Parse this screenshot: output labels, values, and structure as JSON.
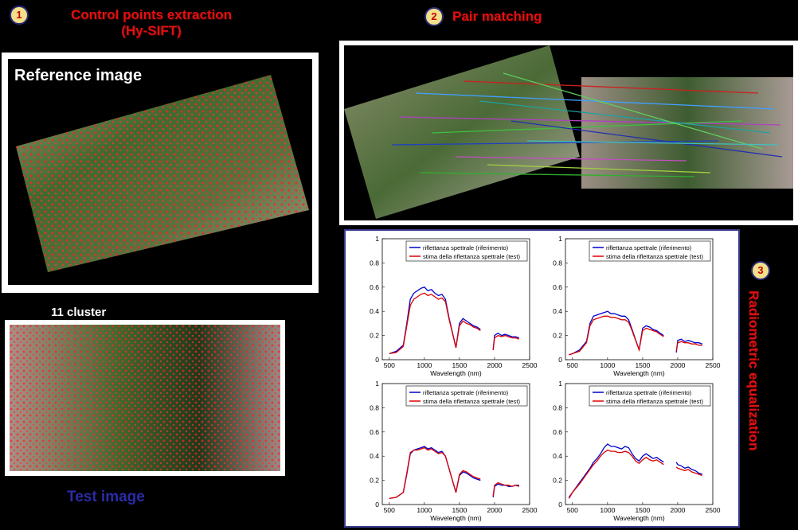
{
  "steps": {
    "s1": {
      "number": "1",
      "title_line1": "Control points extraction",
      "title_line2": "(Hy-SIFT)"
    },
    "s2": {
      "number": "2",
      "title": "Pair matching"
    },
    "s3": {
      "number": "3",
      "title": "Radiometric equalization"
    }
  },
  "labels": {
    "reference": "Reference image",
    "cluster": "11 cluster",
    "test": "Test image"
  },
  "colors": {
    "title_red": "#e01010",
    "test_blue": "#2b2ba8",
    "ref_line": "#0000cc",
    "test_line": "#dd0000"
  },
  "legend": {
    "ref": "riflettanza spettrale (riferimento)",
    "test": "stima della riflettanza spettrale (test)"
  },
  "xlabel": "Wavelength (nm)",
  "chart_data": [
    {
      "type": "line",
      "x": [
        500,
        600,
        700,
        750,
        800,
        850,
        900,
        950,
        1000,
        1050,
        1100,
        1150,
        1200,
        1250,
        1300,
        1350,
        1450,
        1500,
        1550,
        1600,
        1650,
        1700,
        1750,
        1800,
        1980,
        2000,
        2050,
        2100,
        2150,
        2200,
        2250,
        2300,
        2350
      ],
      "xlim": [
        400,
        2500
      ],
      "ylim": [
        0,
        1
      ],
      "xticks": [
        500,
        1000,
        1500,
        2000,
        2500
      ],
      "yticks": [
        0,
        0.2,
        0.4,
        0.6,
        0.8,
        1
      ],
      "xlabel": "Wavelength (nm)",
      "series": [
        {
          "name": "riflettanza spettrale (riferimento)",
          "values": [
            0.05,
            0.07,
            0.12,
            0.3,
            0.5,
            0.55,
            0.57,
            0.59,
            0.6,
            0.57,
            0.58,
            0.55,
            0.53,
            0.54,
            0.5,
            0.35,
            0.1,
            0.3,
            0.34,
            0.32,
            0.3,
            0.28,
            0.27,
            0.25,
            0.08,
            0.2,
            0.22,
            0.2,
            0.21,
            0.2,
            0.19,
            0.19,
            0.18
          ]
        },
        {
          "name": "stima della riflettanza spettrale (test)",
          "values": [
            0.05,
            0.06,
            0.11,
            0.28,
            0.45,
            0.5,
            0.52,
            0.54,
            0.55,
            0.53,
            0.54,
            0.52,
            0.5,
            0.51,
            0.48,
            0.34,
            0.1,
            0.28,
            0.32,
            0.3,
            0.29,
            0.27,
            0.26,
            0.24,
            0.08,
            0.18,
            0.2,
            0.19,
            0.2,
            0.19,
            0.18,
            0.18,
            0.17
          ]
        }
      ]
    },
    {
      "type": "line",
      "x": [
        450,
        500,
        600,
        700,
        750,
        800,
        850,
        900,
        950,
        1000,
        1050,
        1100,
        1150,
        1200,
        1250,
        1300,
        1350,
        1450,
        1500,
        1550,
        1600,
        1650,
        1700,
        1750,
        1800,
        1980,
        2000,
        2050,
        2100,
        2150,
        2200,
        2250,
        2300,
        2350
      ],
      "xlim": [
        400,
        2500
      ],
      "ylim": [
        0,
        1
      ],
      "xticks": [
        500,
        1000,
        1500,
        2000,
        2500
      ],
      "yticks": [
        0,
        0.2,
        0.4,
        0.6,
        0.8,
        1
      ],
      "xlabel": "Wavelength (nm)",
      "series": [
        {
          "name": "riflettanza spettrale (riferimento)",
          "values": [
            0.04,
            0.05,
            0.08,
            0.15,
            0.3,
            0.36,
            0.37,
            0.38,
            0.39,
            0.4,
            0.38,
            0.38,
            0.37,
            0.36,
            0.36,
            0.33,
            0.25,
            0.08,
            0.26,
            0.28,
            0.27,
            0.25,
            0.24,
            0.22,
            0.2,
            0.06,
            0.16,
            0.17,
            0.15,
            0.16,
            0.15,
            0.14,
            0.14,
            0.13
          ]
        },
        {
          "name": "stima della riflettanza spettrale (test)",
          "values": [
            0.04,
            0.05,
            0.07,
            0.14,
            0.28,
            0.33,
            0.34,
            0.35,
            0.36,
            0.36,
            0.35,
            0.35,
            0.34,
            0.33,
            0.33,
            0.31,
            0.24,
            0.08,
            0.24,
            0.26,
            0.25,
            0.24,
            0.23,
            0.21,
            0.19,
            0.07,
            0.14,
            0.15,
            0.14,
            0.14,
            0.13,
            0.13,
            0.12,
            0.12
          ]
        }
      ]
    },
    {
      "type": "line",
      "x": [
        500,
        600,
        700,
        750,
        800,
        850,
        900,
        950,
        1000,
        1050,
        1100,
        1150,
        1200,
        1250,
        1300,
        1350,
        1450,
        1500,
        1550,
        1600,
        1650,
        1700,
        1750,
        1800,
        1980,
        2000,
        2050,
        2100,
        2150,
        2200,
        2250,
        2300,
        2350
      ],
      "xlim": [
        400,
        2500
      ],
      "ylim": [
        0,
        1
      ],
      "xticks": [
        500,
        1000,
        1500,
        2000,
        2500
      ],
      "yticks": [
        0,
        0.2,
        0.4,
        0.6,
        0.8,
        1
      ],
      "xlabel": "Wavelength (nm)",
      "series": [
        {
          "name": "riflettanza spettrale (riferimento)",
          "values": [
            0.05,
            0.06,
            0.1,
            0.25,
            0.42,
            0.45,
            0.46,
            0.47,
            0.48,
            0.46,
            0.47,
            0.45,
            0.43,
            0.44,
            0.4,
            0.3,
            0.1,
            0.24,
            0.27,
            0.26,
            0.24,
            0.22,
            0.21,
            0.2,
            0.06,
            0.15,
            0.17,
            0.16,
            0.16,
            0.15,
            0.15,
            0.16,
            0.16
          ]
        },
        {
          "name": "stima della riflettanza spettrale (test)",
          "values": [
            0.05,
            0.06,
            0.1,
            0.26,
            0.43,
            0.45,
            0.45,
            0.46,
            0.47,
            0.45,
            0.46,
            0.44,
            0.42,
            0.43,
            0.4,
            0.3,
            0.1,
            0.25,
            0.28,
            0.27,
            0.25,
            0.23,
            0.22,
            0.21,
            0.07,
            0.16,
            0.18,
            0.17,
            0.16,
            0.16,
            0.15,
            0.16,
            0.15
          ]
        }
      ]
    },
    {
      "type": "line",
      "x": [
        450,
        500,
        600,
        700,
        750,
        800,
        850,
        900,
        950,
        1000,
        1050,
        1100,
        1150,
        1200,
        1250,
        1300,
        1350,
        1400,
        1450,
        1500,
        1550,
        1600,
        1650,
        1700,
        1750,
        1800,
        1980,
        2000,
        2050,
        2100,
        2150,
        2200,
        2250,
        2300,
        2350
      ],
      "xlim": [
        400,
        2500
      ],
      "ylim": [
        0,
        1
      ],
      "xticks": [
        500,
        1000,
        1500,
        2000,
        2500
      ],
      "yticks": [
        0,
        0.2,
        0.4,
        0.6,
        0.8,
        1
      ],
      "xlabel": "Wavelength (nm)",
      "series": [
        {
          "name": "riflettanza spettrale (riferimento)",
          "values": [
            0.06,
            0.1,
            0.18,
            0.26,
            0.3,
            0.35,
            0.38,
            0.42,
            0.47,
            0.5,
            0.48,
            0.48,
            0.47,
            0.46,
            0.48,
            0.47,
            0.42,
            0.38,
            0.36,
            0.4,
            0.42,
            0.4,
            0.38,
            0.39,
            0.37,
            0.35,
            0.35,
            0.33,
            0.32,
            0.3,
            0.31,
            0.29,
            0.28,
            0.26,
            0.25
          ]
        },
        {
          "name": "stima della riflettanza spettrale (test)",
          "values": [
            0.05,
            0.1,
            0.17,
            0.25,
            0.29,
            0.33,
            0.36,
            0.4,
            0.43,
            0.45,
            0.44,
            0.44,
            0.43,
            0.43,
            0.44,
            0.43,
            0.4,
            0.36,
            0.34,
            0.37,
            0.39,
            0.37,
            0.36,
            0.37,
            0.35,
            0.33,
            0.31,
            0.3,
            0.29,
            0.28,
            0.29,
            0.27,
            0.26,
            0.25,
            0.24
          ]
        }
      ]
    }
  ]
}
